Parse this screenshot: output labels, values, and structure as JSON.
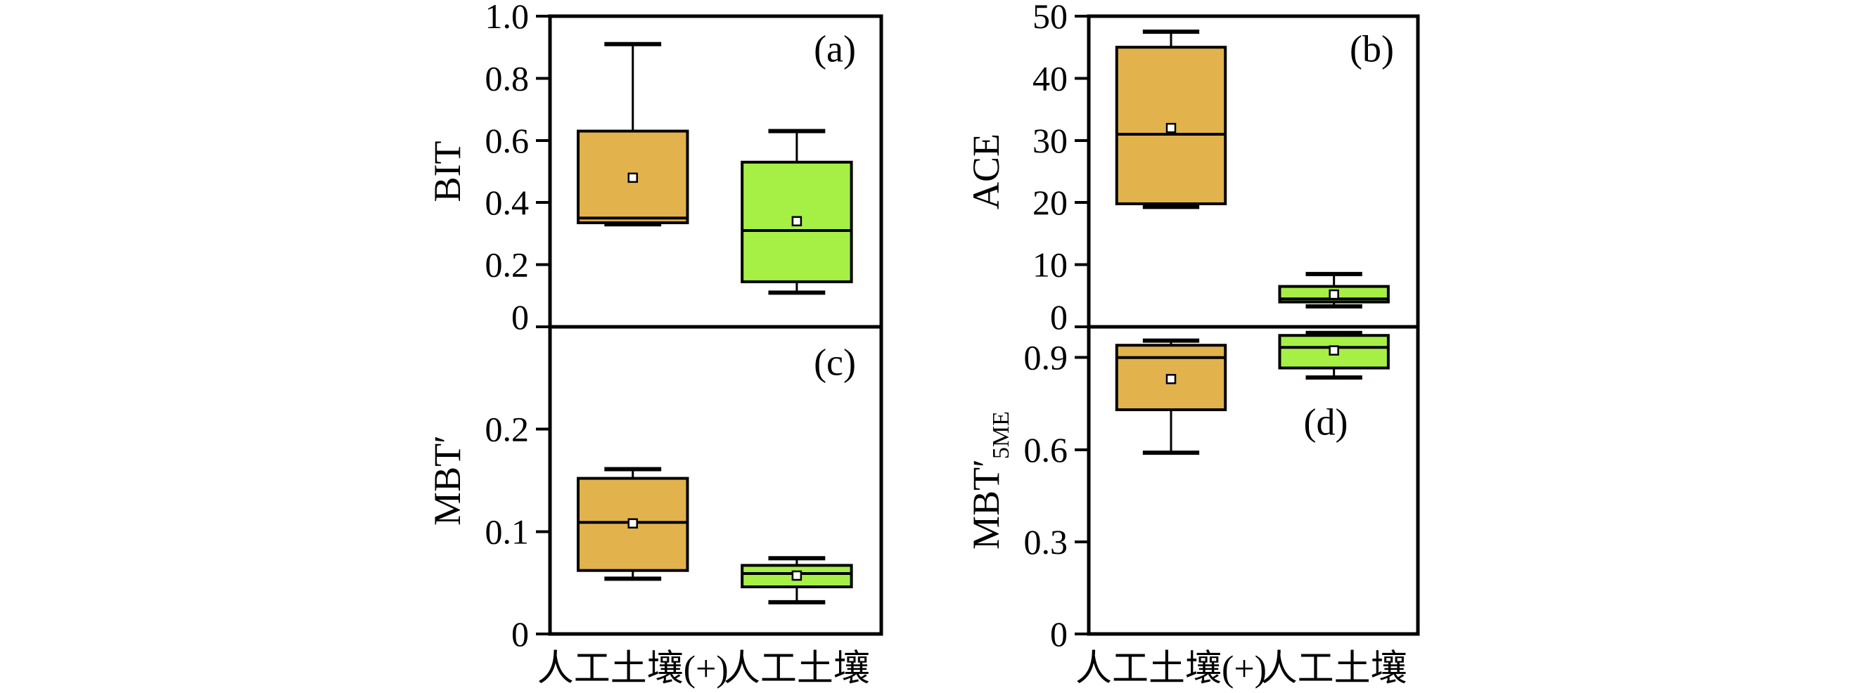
{
  "figure": {
    "background": "#ffffff",
    "categories": [
      "人工土壤(+)",
      "人工土壤"
    ],
    "colors": {
      "orange_fill": "#e2b34c",
      "green_fill": "#a6f046",
      "stroke": "#000000",
      "mean_marker_fill": "#ffffff"
    }
  },
  "chart_data": [
    {
      "type": "box",
      "panel_letter": "(a)",
      "ylabel": "BIT",
      "ylabel_sub": "",
      "ylim": [
        0,
        1.0
      ],
      "yticks": [
        {
          "v": 0,
          "label": "0"
        },
        {
          "v": 0.2,
          "label": "0.2"
        },
        {
          "v": 0.4,
          "label": "0.4"
        },
        {
          "v": 0.6,
          "label": "0.6"
        },
        {
          "v": 0.8,
          "label": "0.8"
        },
        {
          "v": 1.0,
          "label": "1.0"
        }
      ],
      "categories": [
        "人工土壤(+)",
        "人工土壤"
      ],
      "series": [
        {
          "name": "人工土壤(+)",
          "color": "#e2b34c",
          "min": 0.33,
          "q1": 0.335,
          "median": 0.35,
          "q3": 0.63,
          "max": 0.91,
          "mean": 0.48
        },
        {
          "name": "人工土壤",
          "color": "#a6f046",
          "min": 0.11,
          "q1": 0.145,
          "median": 0.31,
          "q3": 0.53,
          "max": 0.63,
          "mean": 0.34
        }
      ]
    },
    {
      "type": "box",
      "panel_letter": "(b)",
      "ylabel": "ACE",
      "ylabel_sub": "",
      "ylim": [
        0,
        50
      ],
      "yticks": [
        {
          "v": 0,
          "label": "0"
        },
        {
          "v": 10,
          "label": "10"
        },
        {
          "v": 20,
          "label": "20"
        },
        {
          "v": 30,
          "label": "30"
        },
        {
          "v": 40,
          "label": "40"
        },
        {
          "v": 50,
          "label": "50"
        }
      ],
      "categories": [
        "人工土壤(+)",
        "人工土壤"
      ],
      "series": [
        {
          "name": "人工土壤(+)",
          "color": "#e2b34c",
          "min": 19.3,
          "q1": 19.8,
          "median": 31.0,
          "q3": 45.0,
          "max": 47.5,
          "mean": 32.0
        },
        {
          "name": "人工土壤",
          "color": "#a6f046",
          "min": 3.3,
          "q1": 4.0,
          "median": 4.5,
          "q3": 6.5,
          "max": 8.5,
          "mean": 5.2
        }
      ]
    },
    {
      "type": "box",
      "panel_letter": "(c)",
      "ylabel": "MBT′",
      "ylabel_sub": "",
      "ylim": [
        0,
        0.3
      ],
      "yticks": [
        {
          "v": 0,
          "label": "0"
        },
        {
          "v": 0.1,
          "label": "0.1"
        },
        {
          "v": 0.2,
          "label": "0.2"
        }
      ],
      "categories": [
        "人工土壤(+)",
        "人工土壤"
      ],
      "series": [
        {
          "name": "人工土壤(+)",
          "color": "#e2b34c",
          "min": 0.054,
          "q1": 0.062,
          "median": 0.109,
          "q3": 0.152,
          "max": 0.161,
          "mean": 0.108
        },
        {
          "name": "人工土壤",
          "color": "#a6f046",
          "min": 0.031,
          "q1": 0.046,
          "median": 0.059,
          "q3": 0.067,
          "max": 0.074,
          "mean": 0.057
        }
      ]
    },
    {
      "type": "box",
      "panel_letter": "(d)",
      "ylabel": "MBT′",
      "ylabel_sub": "5ME",
      "ylim": [
        0,
        1.0
      ],
      "yticks": [
        {
          "v": 0,
          "label": "0"
        },
        {
          "v": 0.3,
          "label": "0.3"
        },
        {
          "v": 0.6,
          "label": "0.6"
        },
        {
          "v": 0.9,
          "label": "0.9"
        }
      ],
      "categories": [
        "人工土壤(+)",
        "人工土壤"
      ],
      "series": [
        {
          "name": "人工土壤(+)",
          "color": "#e2b34c",
          "min": 0.59,
          "q1": 0.73,
          "median": 0.9,
          "q3": 0.94,
          "max": 0.955,
          "mean": 0.83
        },
        {
          "name": "人工土壤",
          "color": "#a6f046",
          "min": 0.835,
          "q1": 0.866,
          "median": 0.933,
          "q3": 0.972,
          "max": 0.98,
          "mean": 0.923
        }
      ]
    }
  ]
}
